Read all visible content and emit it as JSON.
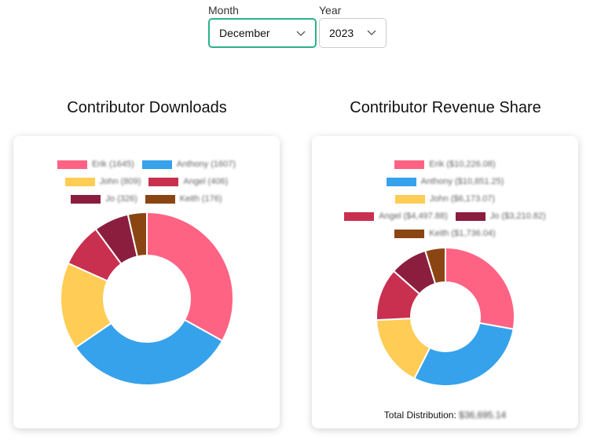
{
  "controls": {
    "month": {
      "label": "Month",
      "value": "December"
    },
    "year": {
      "label": "Year",
      "value": "2023"
    }
  },
  "chart_data": [
    {
      "type": "doughnut",
      "title": "Contributor Downloads",
      "labels": [
        "Erik (1645)",
        "Anthony (1607)",
        "John (809)",
        "Angel (406)",
        "Jo (326)",
        "Keith (176)"
      ],
      "values": [
        1645,
        1607,
        809,
        406,
        326,
        176
      ],
      "colors": [
        "#ff6384",
        "#36a2eb",
        "#ffcd56",
        "#c9304f",
        "#8b1e3f",
        "#8b4513"
      ]
    },
    {
      "type": "doughnut",
      "title": "Contributor Revenue Share",
      "labels": [
        "Erik ($10,226.08)",
        "Anthony ($10,851.25)",
        "John ($6,173.07)",
        "Angel ($4,497.88)",
        "Jo ($3,210.82)",
        "Keith ($1,736.04)"
      ],
      "values": [
        10226.08,
        10851.25,
        6173.07,
        4497.88,
        3210.82,
        1736.04
      ],
      "colors": [
        "#ff6384",
        "#36a2eb",
        "#ffcd56",
        "#c9304f",
        "#8b1e3f",
        "#8b4513"
      ],
      "footer_label": "Total Distribution:",
      "footer_value": "$36,695.14"
    }
  ]
}
